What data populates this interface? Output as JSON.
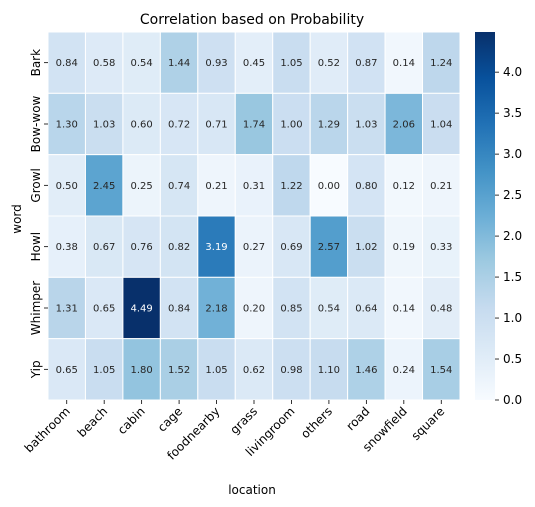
{
  "chart_data": {
    "type": "heatmap",
    "title": "Correlation based on Probability",
    "xlabel": "location",
    "ylabel": "word",
    "x_categories": [
      "bathroom",
      "beach",
      "cabin",
      "cage",
      "foodnearby",
      "grass",
      "livingroom",
      "others",
      "road",
      "snowfield",
      "square"
    ],
    "y_categories": [
      "Bark",
      "Bow-wow",
      "Growl",
      "Howl",
      "Whimper",
      "Yip"
    ],
    "values": [
      [
        0.84,
        0.58,
        0.54,
        1.44,
        0.93,
        0.45,
        1.05,
        0.52,
        0.87,
        0.14,
        1.24
      ],
      [
        1.3,
        1.03,
        0.6,
        0.72,
        0.71,
        1.74,
        1.0,
        1.29,
        1.03,
        2.06,
        1.04
      ],
      [
        0.5,
        2.45,
        0.25,
        0.74,
        0.21,
        0.31,
        1.22,
        0.0,
        0.8,
        0.12,
        0.21
      ],
      [
        0.38,
        0.67,
        0.76,
        0.82,
        3.19,
        0.27,
        0.69,
        2.57,
        1.02,
        0.19,
        0.33
      ],
      [
        1.31,
        0.65,
        4.49,
        0.84,
        2.18,
        0.2,
        0.85,
        0.54,
        0.64,
        0.14,
        0.48
      ],
      [
        0.65,
        1.05,
        1.8,
        1.52,
        1.05,
        0.62,
        0.98,
        1.1,
        1.46,
        0.24,
        1.54
      ]
    ],
    "value_labels": [
      [
        "0.84",
        "0.58",
        "0.54",
        "1.44",
        "0.93",
        "0.45",
        "1.05",
        "0.52",
        "0.87",
        "0.14",
        "1.24"
      ],
      [
        "1.30",
        "1.03",
        "0.60",
        "0.72",
        "0.71",
        "1.74",
        "1.00",
        "1.29",
        "1.03",
        "2.06",
        "1.04"
      ],
      [
        "0.50",
        "2.45",
        "0.25",
        "0.74",
        "0.21",
        "0.31",
        "1.22",
        "0.00",
        "0.80",
        "0.12",
        "0.21"
      ],
      [
        "0.38",
        "0.67",
        "0.76",
        "0.82",
        "3.19",
        "0.27",
        "0.69",
        "2.57",
        "1.02",
        "0.19",
        "0.33"
      ],
      [
        "1.31",
        "0.65",
        "4.49",
        "0.84",
        "2.18",
        "0.20",
        "0.85",
        "0.54",
        "0.64",
        "0.14",
        "0.48"
      ],
      [
        "0.65",
        "1.05",
        "1.80",
        "1.52",
        "1.05",
        "0.62",
        "0.98",
        "1.10",
        "1.46",
        "0.24",
        "1.54"
      ]
    ],
    "colormap": "Blues",
    "colorbar": {
      "range": [
        0.0,
        4.49
      ],
      "ticks": [
        0.0,
        0.5,
        1.0,
        1.5,
        2.0,
        2.5,
        3.0,
        3.5,
        4.0
      ],
      "tick_labels": [
        "0.0",
        "0.5",
        "1.0",
        "1.5",
        "2.0",
        "2.5",
        "3.0",
        "3.5",
        "4.0"
      ],
      "placement": "right"
    },
    "grid": false
  }
}
